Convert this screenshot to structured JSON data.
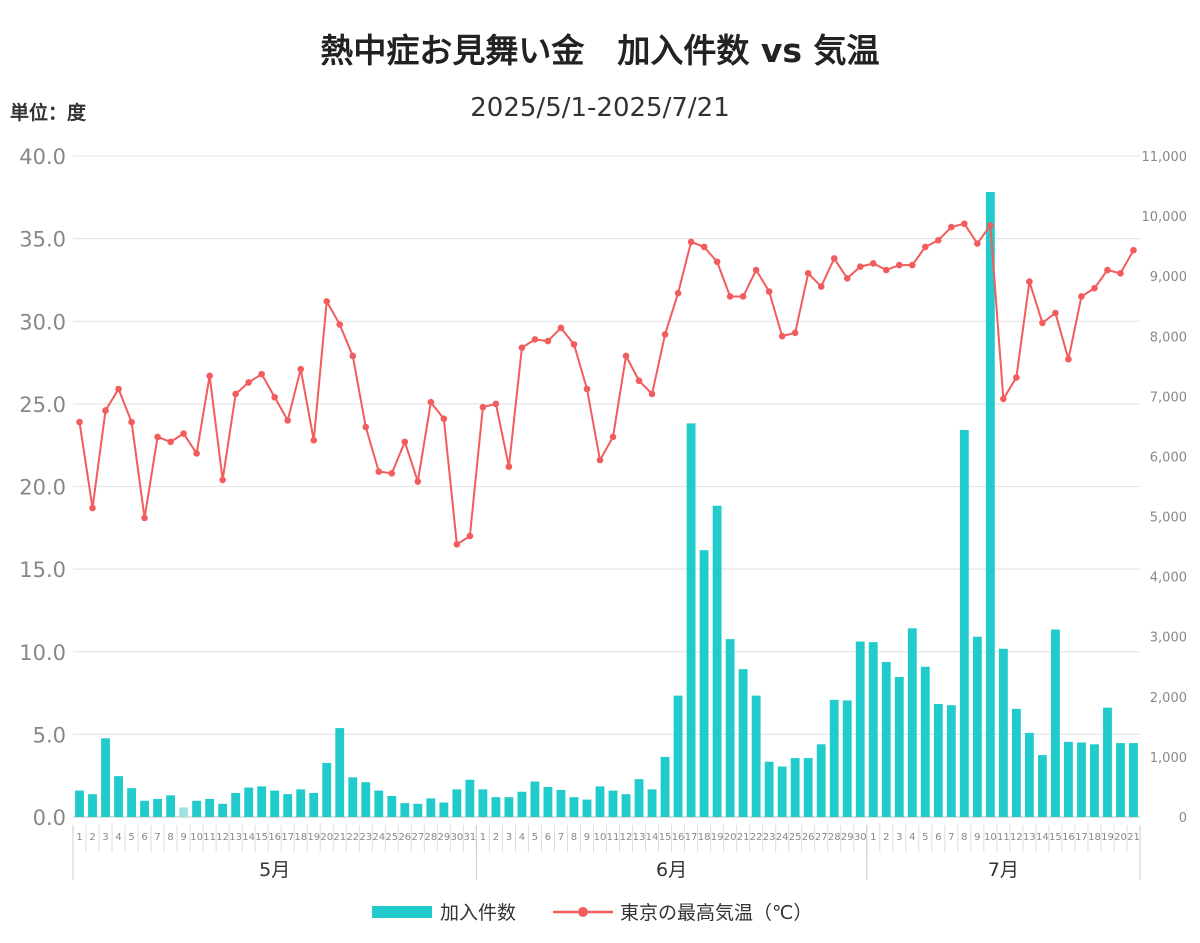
{
  "chart_data": {
    "type": "bar+line",
    "title": "熱中症お見舞い金　加入件数 vs 気温",
    "subtitle": "2025/5/1-2025/7/21",
    "unit_label": "単位：度",
    "left_axis": {
      "ylim": [
        0,
        40
      ],
      "ticks": [
        "0.0",
        "5.0",
        "10.0",
        "15.0",
        "20.0",
        "25.0",
        "30.0",
        "35.0",
        "40.0"
      ]
    },
    "right_axis": {
      "ylim": [
        0,
        11000
      ],
      "ticks": [
        "0",
        "1,000",
        "2,000",
        "3,000",
        "4,000",
        "5,000",
        "6,000",
        "7,000",
        "8,000",
        "9,000",
        "10,000",
        "11,000"
      ]
    },
    "x_month_labels": [
      {
        "label": "5月",
        "days": 31
      },
      {
        "label": "6月",
        "days": 30
      },
      {
        "label": "7月",
        "days": 21
      }
    ],
    "day_labels": [
      "1",
      "2",
      "3",
      "4",
      "5",
      "6",
      "7",
      "8",
      "9",
      "10",
      "11",
      "12",
      "13",
      "14",
      "15",
      "16",
      "17",
      "18",
      "19",
      "20",
      "21",
      "22",
      "23",
      "24",
      "25",
      "26",
      "27",
      "28",
      "29",
      "30",
      "31",
      "1",
      "2",
      "3",
      "4",
      "5",
      "6",
      "7",
      "8",
      "9",
      "10",
      "11",
      "12",
      "13",
      "14",
      "15",
      "16",
      "17",
      "18",
      "19",
      "20",
      "21",
      "22",
      "23",
      "24",
      "25",
      "26",
      "27",
      "28",
      "29",
      "30",
      "1",
      "2",
      "3",
      "4",
      "5",
      "6",
      "7",
      "8",
      "9",
      "10",
      "11",
      "12",
      "13",
      "14",
      "15",
      "16",
      "17",
      "18",
      "19",
      "20",
      "21"
    ],
    "grid": true,
    "legend_position": "bottom",
    "series": [
      {
        "name": "加入件数",
        "type": "bar",
        "axis": "right",
        "color": "#22cbcb",
        "values": [
          440,
          380,
          1310,
          680,
          480,
          270,
          300,
          360,
          160,
          270,
          300,
          220,
          400,
          490,
          510,
          440,
          380,
          460,
          400,
          900,
          1480,
          660,
          580,
          440,
          350,
          230,
          220,
          310,
          240,
          460,
          620,
          460,
          330,
          330,
          420,
          590,
          500,
          450,
          330,
          290,
          510,
          440,
          380,
          630,
          460,
          1000,
          2020,
          6550,
          4440,
          5180,
          2960,
          2460,
          2020,
          920,
          840,
          980,
          980,
          1210,
          1950,
          1940,
          2920,
          2910,
          2580,
          2330,
          3140,
          2500,
          1880,
          1860,
          6440,
          3000,
          10400,
          2800,
          1800,
          1400,
          1030,
          3120,
          1250,
          1240,
          1210,
          1820,
          1230,
          1230
        ]
      },
      {
        "name": "東京の最高気温（℃）",
        "type": "line",
        "axis": "left",
        "color": "#f25c5c",
        "values": [
          23.9,
          18.7,
          24.6,
          25.9,
          23.9,
          18.1,
          23.0,
          22.7,
          23.2,
          22.0,
          26.7,
          20.4,
          25.6,
          26.3,
          26.8,
          25.4,
          24.0,
          27.1,
          22.8,
          31.2,
          29.8,
          27.9,
          23.6,
          20.9,
          20.8,
          22.7,
          20.3,
          25.1,
          24.1,
          16.5,
          17.0,
          24.8,
          25.0,
          21.2,
          28.4,
          28.9,
          28.8,
          29.6,
          28.6,
          25.9,
          21.6,
          23.0,
          27.9,
          26.4,
          25.6,
          29.2,
          31.7,
          34.8,
          34.5,
          33.6,
          31.5,
          31.5,
          33.1,
          31.8,
          29.1,
          29.3,
          32.9,
          32.1,
          33.8,
          32.6,
          33.3,
          33.5,
          33.1,
          33.4,
          33.4,
          34.5,
          34.9,
          35.7,
          35.9,
          34.7,
          35.8,
          25.3,
          26.6,
          32.4,
          29.9,
          30.5,
          27.7,
          31.5,
          32.0,
          33.1,
          32.9,
          34.3
        ]
      }
    ]
  }
}
